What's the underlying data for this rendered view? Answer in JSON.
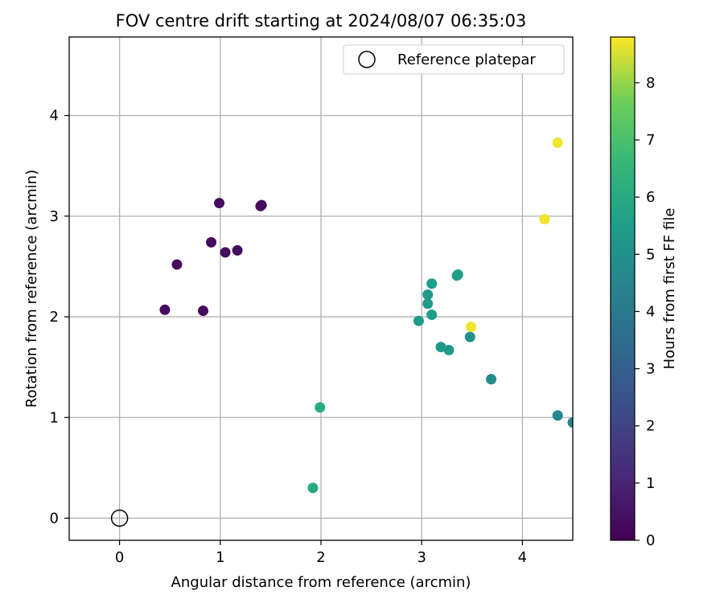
{
  "chart_data": {
    "type": "scatter",
    "title": "FOV centre drift starting at 2024/08/07 06:35:03",
    "xlabel": "Angular distance from reference (arcmin)",
    "ylabel": "Rotation from reference (arcmin)",
    "xlim": [
      -0.5,
      4.5
    ],
    "ylim": [
      -0.22,
      4.78
    ],
    "xticks": [
      0,
      1,
      2,
      3,
      4
    ],
    "yticks": [
      0,
      1,
      2,
      3,
      4
    ],
    "grid": true,
    "legend": {
      "position": "top-right",
      "entries": [
        "Reference platepar"
      ]
    },
    "reference_point": {
      "name": "Reference platepar",
      "x": 0,
      "y": 0
    },
    "colorbar": {
      "label": "Hours from first FF file",
      "min": 0,
      "max": 8.8,
      "ticks": [
        0,
        1,
        2,
        3,
        4,
        5,
        6,
        7,
        8
      ],
      "colormap": "viridis"
    },
    "points": [
      {
        "x": 0.45,
        "y": 2.07,
        "hours": 0.3
      },
      {
        "x": 0.57,
        "y": 2.52,
        "hours": 0.3
      },
      {
        "x": 0.83,
        "y": 2.06,
        "hours": 0.3
      },
      {
        "x": 0.91,
        "y": 2.74,
        "hours": 0.3
      },
      {
        "x": 0.99,
        "y": 3.13,
        "hours": 0.3
      },
      {
        "x": 1.05,
        "y": 2.64,
        "hours": 0.3
      },
      {
        "x": 1.17,
        "y": 2.66,
        "hours": 0.3
      },
      {
        "x": 1.4,
        "y": 3.1,
        "hours": 0.3
      },
      {
        "x": 1.41,
        "y": 3.11,
        "hours": 0.3
      },
      {
        "x": 1.92,
        "y": 0.3,
        "hours": 6.0
      },
      {
        "x": 1.99,
        "y": 1.1,
        "hours": 6.0
      },
      {
        "x": 2.97,
        "y": 1.96,
        "hours": 5.3
      },
      {
        "x": 3.06,
        "y": 2.13,
        "hours": 5.3
      },
      {
        "x": 3.06,
        "y": 2.22,
        "hours": 5.3
      },
      {
        "x": 3.1,
        "y": 2.02,
        "hours": 5.5
      },
      {
        "x": 3.1,
        "y": 2.33,
        "hours": 5.5
      },
      {
        "x": 3.19,
        "y": 1.7,
        "hours": 5.3
      },
      {
        "x": 3.27,
        "y": 1.67,
        "hours": 5.3
      },
      {
        "x": 3.35,
        "y": 2.41,
        "hours": 5.6
      },
      {
        "x": 3.36,
        "y": 2.42,
        "hours": 5.6
      },
      {
        "x": 3.48,
        "y": 1.8,
        "hours": 4.9
      },
      {
        "x": 3.49,
        "y": 1.9,
        "hours": 8.7
      },
      {
        "x": 3.69,
        "y": 1.38,
        "hours": 4.7
      },
      {
        "x": 4.22,
        "y": 2.97,
        "hours": 8.7
      },
      {
        "x": 4.35,
        "y": 1.02,
        "hours": 4.6
      },
      {
        "x": 4.35,
        "y": 3.73,
        "hours": 8.7
      },
      {
        "x": 4.5,
        "y": 0.95,
        "hours": 4.6
      }
    ]
  }
}
